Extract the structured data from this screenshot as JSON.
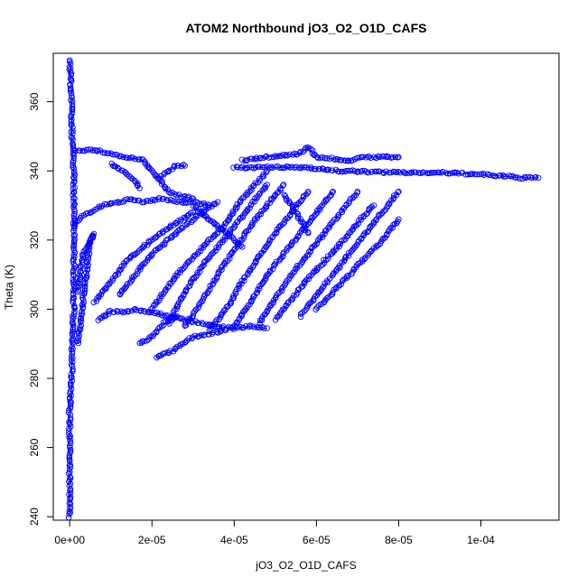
{
  "chart_data": {
    "type": "scatter",
    "title": "ATOM2 Northbound jO3_O2_O1D_CAFS",
    "xlabel": "jO3_O2_O1D_CAFS",
    "ylabel": "Theta (K)",
    "xlim": [
      -4e-06,
      0.000119
    ],
    "ylim": [
      239,
      374
    ],
    "x_ticks": [
      0,
      2e-05,
      4e-05,
      6e-05,
      8e-05,
      0.0001
    ],
    "x_tick_labels": [
      "0e+00",
      "2e-05",
      "4e-05",
      "6e-05",
      "8e-05",
      "1e-04"
    ],
    "y_ticks": [
      240,
      260,
      280,
      300,
      320,
      340,
      360
    ],
    "y_tick_labels": [
      "240",
      "260",
      "280",
      "300",
      "320",
      "340",
      "360"
    ],
    "marker": "open-circle",
    "grid": false,
    "color": "#0000ff",
    "series": [
      {
        "points": [
          [
            0,
            240
          ],
          [
            0,
            250
          ],
          [
            0,
            260
          ],
          [
            0,
            270
          ],
          [
            5e-07,
            280
          ],
          [
            5e-07,
            290
          ],
          [
            1e-06,
            300
          ],
          [
            1e-06,
            310
          ],
          [
            1e-06,
            320
          ],
          [
            1e-06,
            330
          ],
          [
            1e-06,
            340
          ],
          [
            5e-07,
            350
          ],
          [
            5e-07,
            360
          ],
          [
            0,
            372
          ]
        ]
      },
      {
        "points": [
          [
            1.5e-06,
            346
          ],
          [
            6e-06,
            346
          ],
          [
            1e-05,
            345
          ],
          [
            1.3e-05,
            344
          ],
          [
            1.6e-05,
            343.5
          ],
          [
            1.8e-05,
            343
          ],
          [
            2e-05,
            340
          ],
          [
            2.2e-05,
            337
          ],
          [
            2.4e-05,
            334
          ],
          [
            2.6e-05,
            333
          ],
          [
            3e-05,
            332
          ]
        ]
      },
      {
        "points": [
          [
            1e-05,
            342
          ],
          [
            1.3e-05,
            340
          ],
          [
            1.6e-05,
            337
          ],
          [
            1.7e-05,
            335
          ]
        ]
      },
      {
        "points": [
          [
            2.2e-05,
            338
          ],
          [
            2.4e-05,
            340
          ],
          [
            2.6e-05,
            341.5
          ],
          [
            2.8e-05,
            341.5
          ]
        ]
      },
      {
        "points": [
          [
            4e-05,
            341
          ],
          [
            5e-05,
            341
          ],
          [
            5.8e-05,
            341
          ],
          [
            6.5e-05,
            340
          ],
          [
            8e-05,
            339.5
          ],
          [
            9e-05,
            339.5
          ],
          [
            0.0001,
            339
          ],
          [
            0.00011,
            338
          ],
          [
            0.000114,
            338
          ]
        ]
      },
      {
        "points": [
          [
            4.2e-05,
            343
          ],
          [
            4.8e-05,
            344
          ],
          [
            5.6e-05,
            345
          ],
          [
            5.8e-05,
            347
          ],
          [
            6e-05,
            344
          ],
          [
            6.8e-05,
            343
          ],
          [
            7.2e-05,
            344
          ],
          [
            8e-05,
            344
          ]
        ]
      },
      {
        "points": [
          [
            1e-06,
            324
          ],
          [
            3e-06,
            327
          ],
          [
            5e-06,
            328
          ],
          [
            8e-06,
            330
          ],
          [
            1.2e-05,
            331
          ],
          [
            1.5e-05,
            332
          ],
          [
            1.8e-05,
            331
          ],
          [
            2.2e-05,
            332
          ],
          [
            2.6e-05,
            331
          ],
          [
            3e-05,
            331
          ],
          [
            3.4e-05,
            330
          ]
        ]
      },
      {
        "points": [
          [
            7e-06,
            297
          ],
          [
            1e-05,
            299.5
          ],
          [
            1.3e-05,
            299
          ],
          [
            1.6e-05,
            300
          ],
          [
            2e-05,
            299
          ],
          [
            2.4e-05,
            298
          ],
          [
            2.8e-05,
            297
          ],
          [
            3.2e-05,
            296
          ],
          [
            3.6e-05,
            295
          ],
          [
            4e-05,
            294.5
          ],
          [
            4.4e-05,
            295
          ],
          [
            4.8e-05,
            294.5
          ]
        ]
      },
      {
        "points": [
          [
            1.7e-05,
            290
          ],
          [
            2e-05,
            292
          ],
          [
            2.3e-05,
            296
          ],
          [
            2.6e-05,
            298
          ]
        ]
      },
      {
        "points": [
          [
            2.1e-05,
            286
          ],
          [
            2.5e-05,
            288
          ],
          [
            3e-05,
            292
          ],
          [
            3.4e-05,
            293
          ],
          [
            3.8e-05,
            294
          ]
        ]
      },
      {
        "points": [
          [
            2e-05,
            300
          ],
          [
            2.3e-05,
            305
          ],
          [
            2.6e-05,
            310
          ],
          [
            3e-05,
            315
          ],
          [
            3.4e-05,
            320
          ],
          [
            3.8e-05,
            325
          ],
          [
            4.2e-05,
            332
          ],
          [
            4.5e-05,
            336
          ],
          [
            4.8e-05,
            340
          ]
        ]
      },
      {
        "points": [
          [
            2.4e-05,
            296
          ],
          [
            2.8e-05,
            305
          ],
          [
            3.2e-05,
            312
          ],
          [
            3.6e-05,
            318
          ],
          [
            4e-05,
            324
          ],
          [
            4.4e-05,
            330
          ],
          [
            4.8e-05,
            336
          ]
        ]
      },
      {
        "points": [
          [
            2.8e-05,
            295
          ],
          [
            3.2e-05,
            302
          ],
          [
            3.6e-05,
            310
          ],
          [
            4e-05,
            317
          ],
          [
            4.4e-05,
            324
          ],
          [
            4.8e-05,
            330
          ],
          [
            5.2e-05,
            336
          ]
        ]
      },
      {
        "points": [
          [
            3.4e-05,
            294
          ],
          [
            3.8e-05,
            300
          ],
          [
            4.2e-05,
            308
          ],
          [
            4.6e-05,
            315
          ],
          [
            5e-05,
            322
          ],
          [
            5.4e-05,
            328
          ],
          [
            5.8e-05,
            334
          ]
        ]
      },
      {
        "points": [
          [
            4e-05,
            295
          ],
          [
            4.4e-05,
            302
          ],
          [
            4.8e-05,
            310
          ],
          [
            5.2e-05,
            316
          ],
          [
            5.6e-05,
            322
          ],
          [
            6e-05,
            328
          ],
          [
            6.4e-05,
            334
          ]
        ]
      },
      {
        "points": [
          [
            4.6e-05,
            296
          ],
          [
            5e-05,
            303
          ],
          [
            5.4e-05,
            310
          ],
          [
            5.8e-05,
            316
          ],
          [
            6.2e-05,
            322
          ],
          [
            6.6e-05,
            328
          ],
          [
            7e-05,
            334
          ]
        ]
      },
      {
        "points": [
          [
            5e-05,
            297
          ],
          [
            5.4e-05,
            303
          ],
          [
            5.8e-05,
            309
          ],
          [
            6.2e-05,
            314
          ],
          [
            6.6e-05,
            319
          ],
          [
            7e-05,
            325
          ],
          [
            7.4e-05,
            330
          ]
        ]
      },
      {
        "points": [
          [
            5.6e-05,
            298
          ],
          [
            6e-05,
            304
          ],
          [
            6.4e-05,
            310
          ],
          [
            6.8e-05,
            316
          ],
          [
            7.2e-05,
            322
          ],
          [
            7.6e-05,
            328
          ],
          [
            8e-05,
            334
          ]
        ]
      },
      {
        "points": [
          [
            6e-05,
            300
          ],
          [
            6.4e-05,
            305
          ],
          [
            6.8e-05,
            310
          ],
          [
            7.2e-05,
            315
          ],
          [
            7.6e-05,
            320
          ],
          [
            8e-05,
            326
          ]
        ]
      },
      {
        "points": [
          [
            6e-06,
            302
          ],
          [
            1e-05,
            308
          ],
          [
            1.4e-05,
            314
          ],
          [
            1.8e-05,
            318
          ],
          [
            2.2e-05,
            322
          ],
          [
            2.6e-05,
            325
          ],
          [
            3e-05,
            328
          ]
        ]
      },
      {
        "points": [
          [
            1.2e-05,
            304
          ],
          [
            1.6e-05,
            310
          ],
          [
            2e-05,
            316
          ],
          [
            2.4e-05,
            320
          ],
          [
            2.8e-05,
            324
          ],
          [
            3.2e-05,
            328
          ],
          [
            3.6e-05,
            331
          ]
        ]
      },
      {
        "points": [
          [
            3e-05,
            330
          ],
          [
            3.4e-05,
            326
          ],
          [
            3.8e-05,
            322
          ],
          [
            4e-05,
            320
          ],
          [
            4.2e-05,
            318
          ]
        ]
      },
      {
        "points": [
          [
            5.2e-05,
            333
          ],
          [
            5.4e-05,
            330
          ],
          [
            5.6e-05,
            326
          ],
          [
            5.8e-05,
            322
          ]
        ]
      },
      {
        "points": [
          [
            2e-06,
            290
          ],
          [
            3e-06,
            300
          ],
          [
            4e-06,
            310
          ],
          [
            5e-06,
            320
          ],
          [
            6e-06,
            322
          ],
          [
            3e-06,
            315
          ],
          [
            2e-06,
            305
          ]
        ]
      }
    ]
  }
}
